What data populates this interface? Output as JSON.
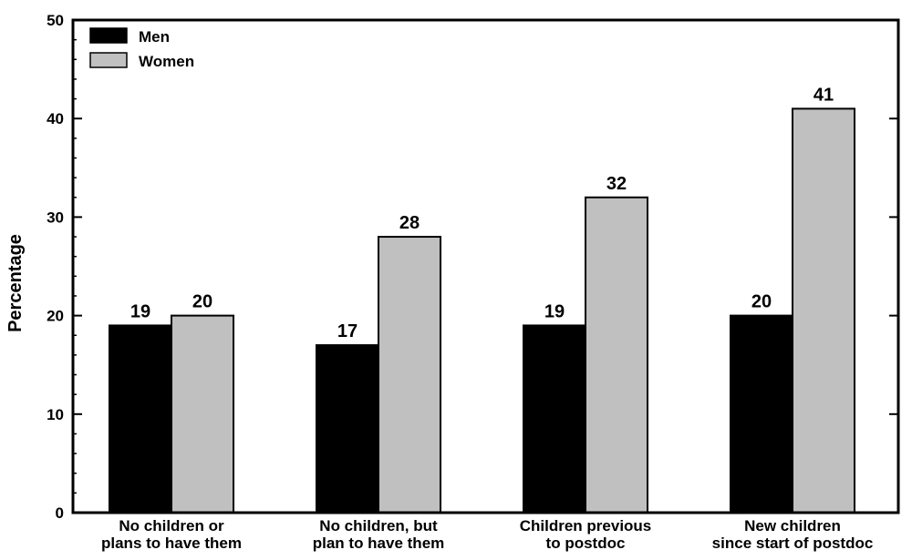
{
  "chart_data": {
    "type": "bar",
    "categories": [
      [
        "No children or",
        "plans to have them"
      ],
      [
        "No children, but",
        "plan to have them"
      ],
      [
        "Children previous",
        "to postdoc"
      ],
      [
        "New children",
        "since start of postdoc"
      ]
    ],
    "series": [
      {
        "name": "Men",
        "color": "#000000",
        "values": [
          19,
          17,
          19,
          20
        ]
      },
      {
        "name": "Women",
        "color": "#c0c0c0",
        "values": [
          20,
          28,
          32,
          41
        ]
      }
    ],
    "title": "",
    "xlabel": "",
    "ylabel": "Percentage",
    "ylim": [
      0,
      50
    ],
    "yticks": [
      "0",
      "10",
      "20",
      "30",
      "40",
      "50"
    ],
    "ytick_values": [
      0,
      10,
      20,
      30,
      40,
      50
    ],
    "grid": false,
    "legend": "top-left"
  }
}
